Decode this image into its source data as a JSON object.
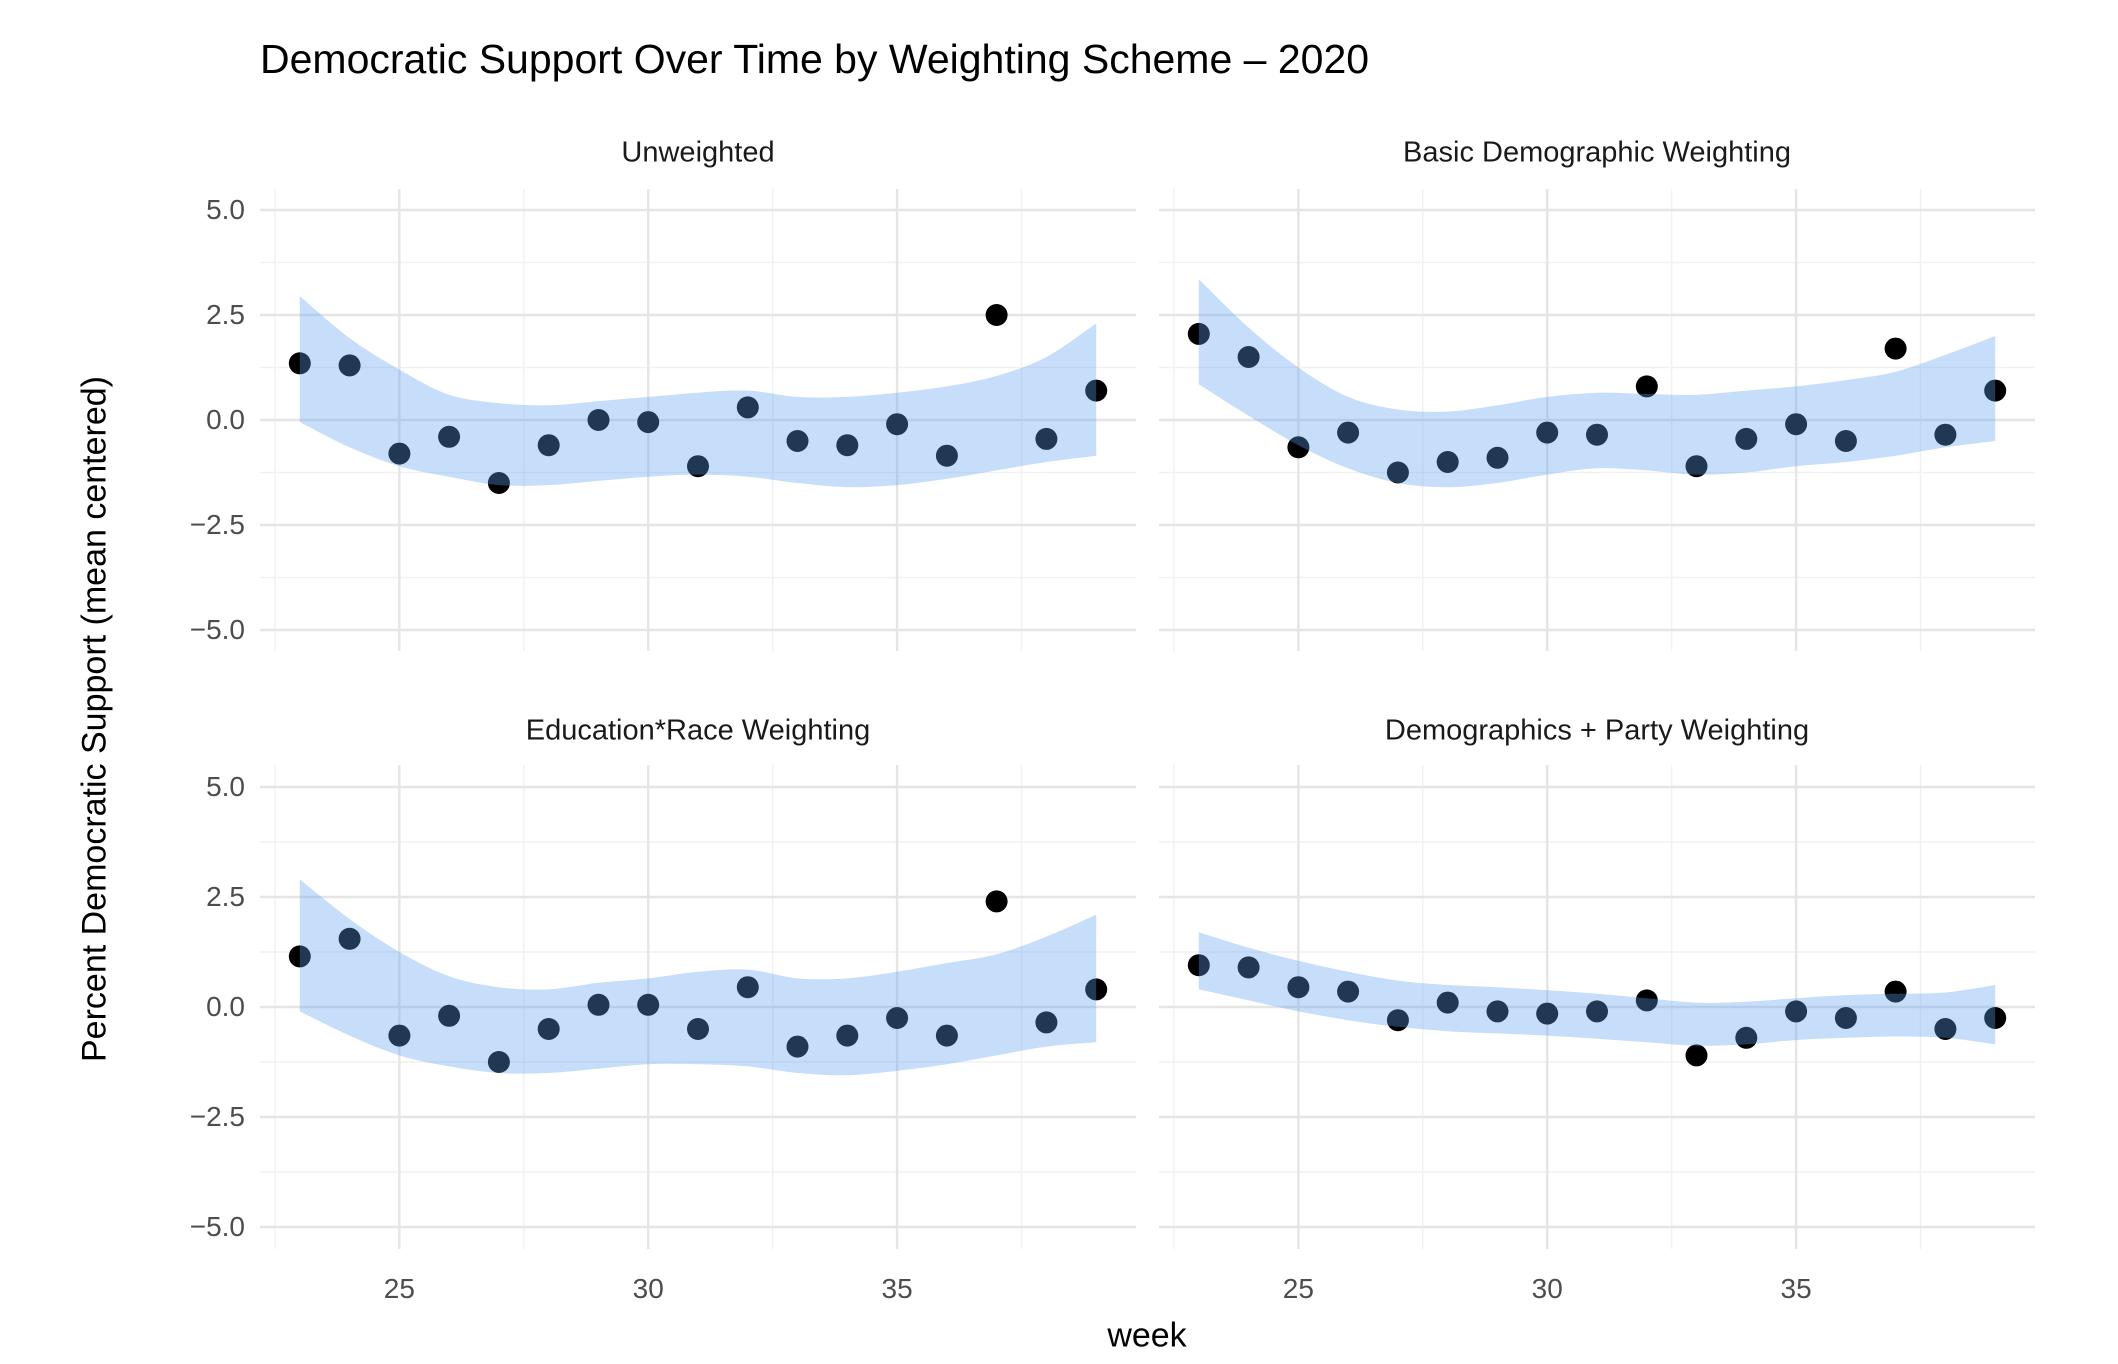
{
  "chart_data": {
    "type": "scatter",
    "title": "Democratic Support Over Time by Weighting Scheme – 2020",
    "xlabel": "week",
    "ylabel": "Percent Democratic Support (mean centered)",
    "x": [
      23,
      24,
      25,
      26,
      27,
      28,
      29,
      30,
      31,
      32,
      33,
      34,
      35,
      36,
      37,
      38,
      39
    ],
    "xlim": [
      22.2,
      39.8
    ],
    "ylim": [
      -5.5,
      5.5
    ],
    "x_major_ticks": [
      25,
      30,
      35
    ],
    "x_tick_labels": [
      "25",
      "30",
      "35"
    ],
    "x_minor_ticks": [
      22.5,
      27.5,
      32.5,
      37.5
    ],
    "y_major_ticks": [
      5,
      2.5,
      0,
      -2.5,
      -5
    ],
    "y_tick_labels": [
      "5.0",
      "2.5",
      "0.0",
      "−2.5",
      "−5.0"
    ],
    "y_minor_ticks": [
      3.75,
      1.25,
      -1.25,
      -3.75
    ],
    "grid": "major-and-minor",
    "legend": "none",
    "smoother": "loess ribbon (confidence band, no line), drawn over points",
    "panels": [
      {
        "title": "Unweighted",
        "points": [
          1.35,
          1.3,
          -0.8,
          -0.4,
          -1.5,
          -0.6,
          0.0,
          -0.05,
          -1.1,
          0.3,
          -0.5,
          -0.6,
          -0.1,
          -0.85,
          2.5,
          -0.45,
          0.7
        ],
        "ribbon_upper": [
          2.95,
          1.95,
          1.2,
          0.6,
          0.4,
          0.35,
          0.45,
          0.55,
          0.65,
          0.7,
          0.55,
          0.55,
          0.65,
          0.8,
          1.05,
          1.5,
          2.3
        ],
        "ribbon_lower": [
          -0.05,
          -0.65,
          -1.1,
          -1.35,
          -1.55,
          -1.55,
          -1.45,
          -1.35,
          -1.3,
          -1.35,
          -1.5,
          -1.6,
          -1.55,
          -1.4,
          -1.2,
          -1.0,
          -0.85
        ]
      },
      {
        "title": "Basic Demographic Weighting",
        "points": [
          2.05,
          1.5,
          -0.65,
          -0.3,
          -1.25,
          -1.0,
          -0.9,
          -0.3,
          -0.35,
          0.8,
          -1.1,
          -0.45,
          -0.1,
          -0.5,
          1.7,
          -0.35,
          0.7
        ],
        "ribbon_upper": [
          3.35,
          2.2,
          1.25,
          0.55,
          0.25,
          0.2,
          0.35,
          0.55,
          0.65,
          0.62,
          0.6,
          0.7,
          0.8,
          0.95,
          1.15,
          1.55,
          2.0
        ],
        "ribbon_lower": [
          0.85,
          0.1,
          -0.6,
          -1.15,
          -1.5,
          -1.6,
          -1.5,
          -1.3,
          -1.15,
          -1.2,
          -1.3,
          -1.25,
          -1.1,
          -1.0,
          -0.85,
          -0.65,
          -0.5
        ]
      },
      {
        "title": "Education*Race Weighting",
        "points": [
          1.15,
          1.55,
          -0.65,
          -0.2,
          -1.25,
          -0.5,
          0.05,
          0.05,
          -0.5,
          0.45,
          -0.9,
          -0.65,
          -0.25,
          -0.65,
          2.4,
          -0.35,
          0.4
        ],
        "ribbon_upper": [
          2.9,
          2.0,
          1.25,
          0.7,
          0.45,
          0.4,
          0.55,
          0.65,
          0.8,
          0.85,
          0.65,
          0.65,
          0.8,
          1.0,
          1.2,
          1.6,
          2.1
        ],
        "ribbon_lower": [
          -0.1,
          -0.65,
          -1.1,
          -1.35,
          -1.5,
          -1.5,
          -1.4,
          -1.3,
          -1.3,
          -1.35,
          -1.5,
          -1.55,
          -1.45,
          -1.3,
          -1.1,
          -0.9,
          -0.8
        ]
      },
      {
        "title": "Demographics + Party Weighting",
        "points": [
          0.95,
          0.9,
          0.45,
          0.35,
          -0.3,
          0.1,
          -0.1,
          -0.15,
          -0.1,
          0.15,
          -1.1,
          -0.7,
          -0.1,
          -0.25,
          0.35,
          -0.5,
          -0.25
        ],
        "ribbon_upper": [
          1.7,
          1.35,
          1.05,
          0.8,
          0.6,
          0.5,
          0.45,
          0.38,
          0.3,
          0.2,
          0.1,
          0.12,
          0.2,
          0.27,
          0.3,
          0.33,
          0.5
        ],
        "ribbon_lower": [
          0.4,
          0.15,
          -0.1,
          -0.3,
          -0.45,
          -0.55,
          -0.6,
          -0.65,
          -0.72,
          -0.8,
          -0.88,
          -0.85,
          -0.75,
          -0.7,
          -0.67,
          -0.7,
          -0.85
        ]
      }
    ],
    "colors": {
      "point": "#000000",
      "ribbon_fill_rgba": "rgba(93,160,240,0.35)",
      "grid_major": "#e5e5e5",
      "grid_minor": "#f1f1f1",
      "tick_label": "#4d4d4d",
      "title_text": "#000000",
      "background": "#ffffff"
    }
  }
}
